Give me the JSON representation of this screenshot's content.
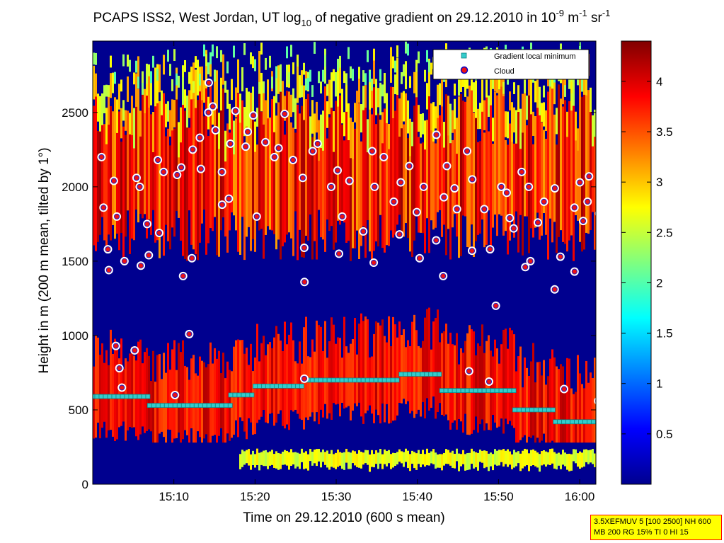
{
  "chart_data": {
    "type": "heatmap",
    "title_parts": {
      "pre": "PCAPS ISS2, West Jordan, UT log",
      "sub": "10",
      "mid": " of negative gradient on 29.12.2010 in 10",
      "exp1": "-9",
      "unit1": " m",
      "exp2": "-1",
      "unit2": " sr",
      "exp3": "-1"
    },
    "xlabel": "Time on 29.12.2010 (600 s mean)",
    "ylabel": "Height in m (200 m mean, tilted by 1°)",
    "x_ticks": [
      "15:10",
      "15:20",
      "15:30",
      "15:40",
      "15:50",
      "16:00"
    ],
    "y_ticks": [
      "0",
      "500",
      "1000",
      "1500",
      "2000",
      "2500"
    ],
    "colorbar_ticks": [
      "0.5",
      "1",
      "1.5",
      "2",
      "2.5",
      "3",
      "3.5",
      "4"
    ],
    "colorbar_range": [
      0,
      4.4
    ],
    "colormap": "jet",
    "xlim": [
      "15:00",
      "16:02"
    ],
    "ylim": [
      0,
      2980
    ],
    "legend": {
      "position": "top-right",
      "entries": [
        {
          "label": "Gradient local minimum",
          "marker": "square",
          "color": "#33cccc"
        },
        {
          "label": "Cloud",
          "marker": "circle",
          "color": "#ee1111"
        }
      ]
    },
    "gradient_local_minimum": [
      {
        "t_start": "15:00",
        "t_end": "15:07",
        "height": 590
      },
      {
        "t_start": "15:07",
        "t_end": "15:17",
        "height": 530
      },
      {
        "t_start": "15:17",
        "t_end": "15:20",
        "height": 600
      },
      {
        "t_start": "15:20",
        "t_end": "15:26",
        "height": 660
      },
      {
        "t_start": "15:26",
        "t_end": "15:38",
        "height": 700
      },
      {
        "t_start": "15:38",
        "t_end": "15:43",
        "height": 740
      },
      {
        "t_start": "15:43",
        "t_end": "15:52",
        "height": 630
      },
      {
        "t_start": "15:52",
        "t_end": "15:57",
        "height": 500
      },
      {
        "t_start": "15:57",
        "t_end": "16:02",
        "height": 420
      }
    ],
    "cloud_points": [
      {
        "t": "15:01",
        "h": 2200
      },
      {
        "t": "15:01",
        "h": 1860
      },
      {
        "t": "15:02",
        "h": 1580
      },
      {
        "t": "15:02",
        "h": 1440
      },
      {
        "t": "15:03",
        "h": 1800
      },
      {
        "t": "15:03",
        "h": 2040
      },
      {
        "t": "15:03",
        "h": 930
      },
      {
        "t": "15:03",
        "h": 780
      },
      {
        "t": "15:04",
        "h": 1500
      },
      {
        "t": "15:04",
        "h": 650
      },
      {
        "t": "15:05",
        "h": 900
      },
      {
        "t": "15:05",
        "h": 2060
      },
      {
        "t": "15:06",
        "h": 1470
      },
      {
        "t": "15:06",
        "h": 2000
      },
      {
        "t": "15:07",
        "h": 1750
      },
      {
        "t": "15:07",
        "h": 1540
      },
      {
        "t": "15:08",
        "h": 2180
      },
      {
        "t": "15:08",
        "h": 1690
      },
      {
        "t": "15:09",
        "h": 2100
      },
      {
        "t": "15:10",
        "h": 2080
      },
      {
        "t": "15:10",
        "h": 600
      },
      {
        "t": "15:11",
        "h": 1400
      },
      {
        "t": "15:11",
        "h": 2130
      },
      {
        "t": "15:12",
        "h": 1520
      },
      {
        "t": "15:12",
        "h": 1010
      },
      {
        "t": "15:12",
        "h": 2250
      },
      {
        "t": "15:13",
        "h": 2330
      },
      {
        "t": "15:13",
        "h": 2120
      },
      {
        "t": "15:14",
        "h": 2500
      },
      {
        "t": "15:14",
        "h": 2700
      },
      {
        "t": "15:15",
        "h": 2380
      },
      {
        "t": "15:15",
        "h": 2540
      },
      {
        "t": "15:16",
        "h": 2100
      },
      {
        "t": "15:16",
        "h": 1880
      },
      {
        "t": "15:17",
        "h": 2290
      },
      {
        "t": "15:17",
        "h": 1920
      },
      {
        "t": "15:18",
        "h": 2510
      },
      {
        "t": "15:19",
        "h": 2370
      },
      {
        "t": "15:19",
        "h": 2270
      },
      {
        "t": "15:20",
        "h": 2480
      },
      {
        "t": "15:20",
        "h": 1800
      },
      {
        "t": "15:21",
        "h": 2300
      },
      {
        "t": "15:22",
        "h": 2200
      },
      {
        "t": "15:23",
        "h": 2260
      },
      {
        "t": "15:24",
        "h": 2490
      },
      {
        "t": "15:25",
        "h": 2180
      },
      {
        "t": "15:26",
        "h": 2060
      },
      {
        "t": "15:26",
        "h": 1590
      },
      {
        "t": "15:26",
        "h": 1360
      },
      {
        "t": "15:26",
        "h": 710
      },
      {
        "t": "15:27",
        "h": 2240
      },
      {
        "t": "15:28",
        "h": 2290
      },
      {
        "t": "15:29",
        "h": 2000
      },
      {
        "t": "15:30",
        "h": 1550
      },
      {
        "t": "15:30",
        "h": 2110
      },
      {
        "t": "15:31",
        "h": 1800
      },
      {
        "t": "15:32",
        "h": 2040
      },
      {
        "t": "15:33",
        "h": 1700
      },
      {
        "t": "15:34",
        "h": 2240
      },
      {
        "t": "15:35",
        "h": 2000
      },
      {
        "t": "15:35",
        "h": 1490
      },
      {
        "t": "15:36",
        "h": 2200
      },
      {
        "t": "15:37",
        "h": 1900
      },
      {
        "t": "15:38",
        "h": 2030
      },
      {
        "t": "15:38",
        "h": 1680
      },
      {
        "t": "15:39",
        "h": 2140
      },
      {
        "t": "15:40",
        "h": 1830
      },
      {
        "t": "15:40",
        "h": 1520
      },
      {
        "t": "15:41",
        "h": 2000
      },
      {
        "t": "15:42",
        "h": 2350
      },
      {
        "t": "15:42",
        "h": 1640
      },
      {
        "t": "15:43",
        "h": 1930
      },
      {
        "t": "15:43",
        "h": 1400
      },
      {
        "t": "15:44",
        "h": 2140
      },
      {
        "t": "15:45",
        "h": 1850
      },
      {
        "t": "15:45",
        "h": 1990
      },
      {
        "t": "15:46",
        "h": 2240
      },
      {
        "t": "15:46",
        "h": 760
      },
      {
        "t": "15:47",
        "h": 1570
      },
      {
        "t": "15:47",
        "h": 2050
      },
      {
        "t": "15:48",
        "h": 1850
      },
      {
        "t": "15:49",
        "h": 1580
      },
      {
        "t": "15:49",
        "h": 690
      },
      {
        "t": "15:50",
        "h": 2000
      },
      {
        "t": "15:50",
        "h": 1200
      },
      {
        "t": "15:51",
        "h": 1790
      },
      {
        "t": "15:51",
        "h": 1960
      },
      {
        "t": "15:52",
        "h": 1720
      },
      {
        "t": "15:53",
        "h": 2100
      },
      {
        "t": "15:53",
        "h": 1460
      },
      {
        "t": "15:54",
        "h": 2000
      },
      {
        "t": "15:54",
        "h": 1500
      },
      {
        "t": "15:55",
        "h": 1760
      },
      {
        "t": "15:56",
        "h": 1900
      },
      {
        "t": "15:57",
        "h": 1990
      },
      {
        "t": "15:57",
        "h": 1310
      },
      {
        "t": "15:58",
        "h": 1530
      },
      {
        "t": "15:58",
        "h": 640
      },
      {
        "t": "15:59",
        "h": 1860
      },
      {
        "t": "15:59",
        "h": 1430
      },
      {
        "t": "16:00",
        "h": 2030
      },
      {
        "t": "16:00",
        "h": 1770
      },
      {
        "t": "16:01",
        "h": 2070
      },
      {
        "t": "16:01",
        "h": 1900
      },
      {
        "t": "16:02",
        "h": 1820
      },
      {
        "t": "16:02",
        "h": 560
      }
    ]
  },
  "info_box": {
    "line1": "3.5XEFMUV 5 [100 2500] NH 600",
    "line2": "MB 200 RG 15% TI 0 HI 15"
  }
}
